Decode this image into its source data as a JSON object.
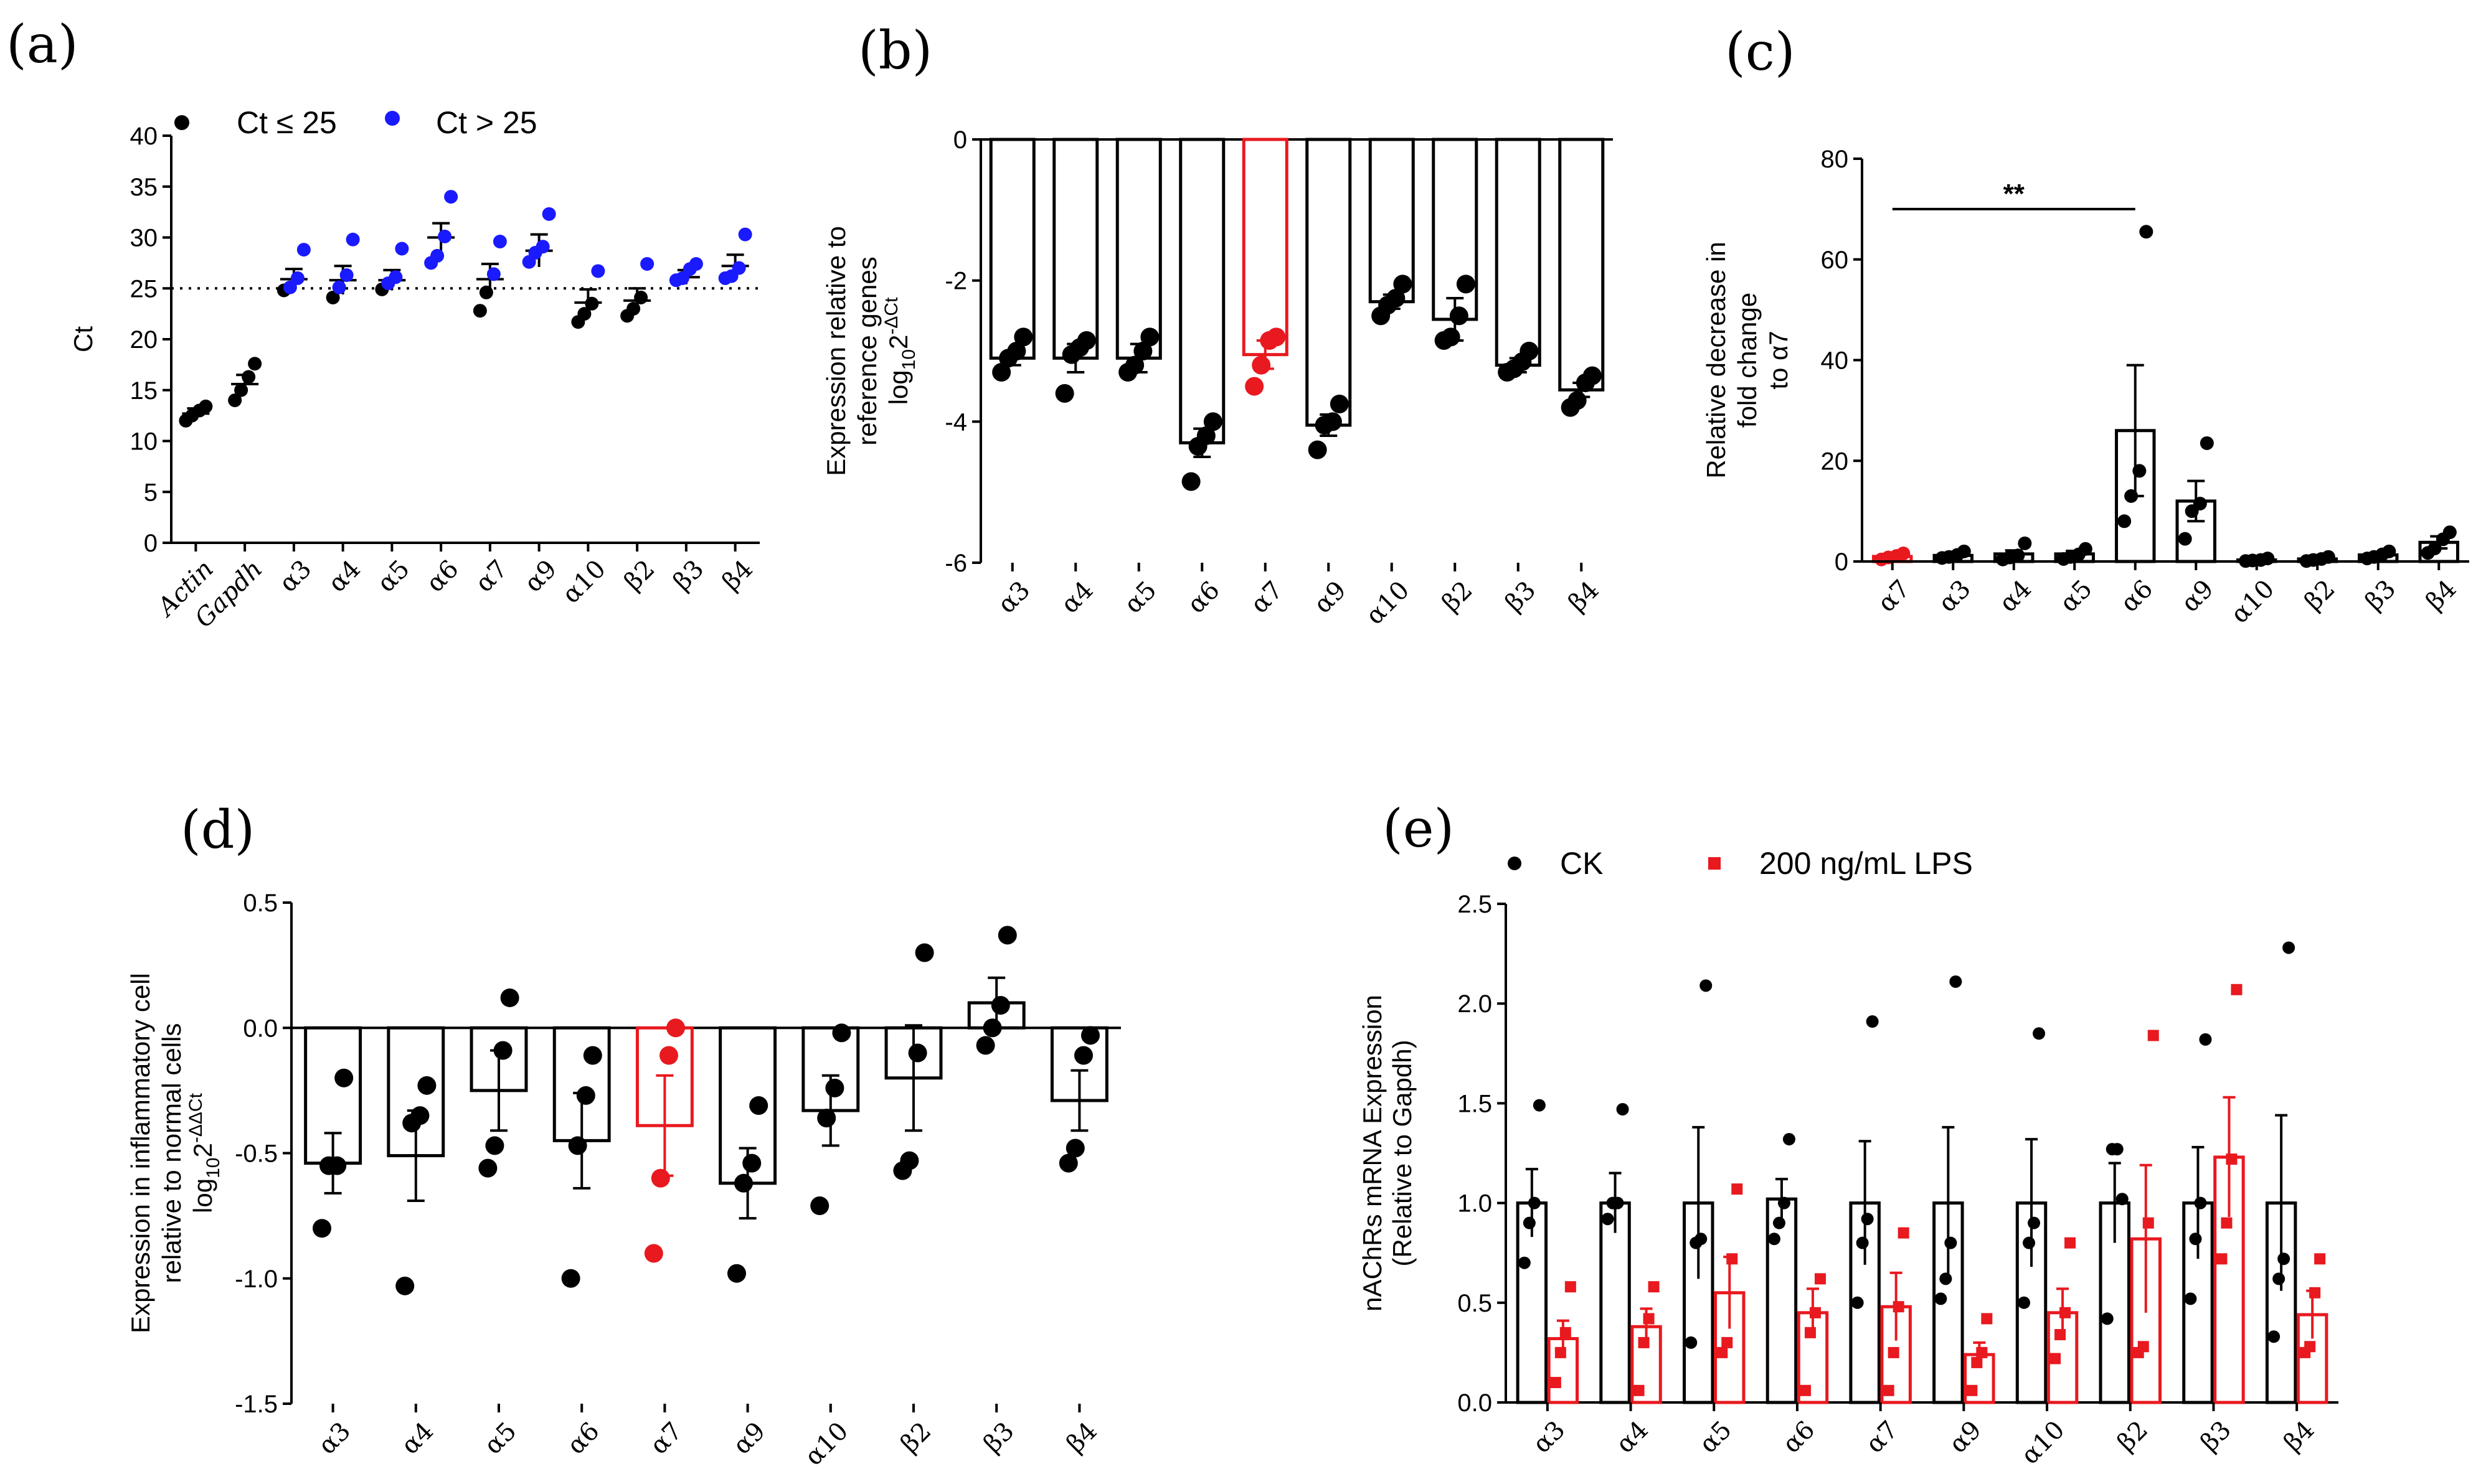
{
  "colors": {
    "black": "#000000",
    "blue": "#1a1aff",
    "red": "#e8191f"
  },
  "panel_labels": {
    "a": "(a)",
    "b": "(b)",
    "c": "(c)",
    "d": "(d)",
    "e": "(e)"
  },
  "chart_data": [
    {
      "id": "a",
      "type": "scatter",
      "title": "",
      "xlabel": "",
      "ylabel": "Ct",
      "ylim": [
        0,
        40
      ],
      "yticks": [
        "0",
        "5",
        "10",
        "15",
        "20",
        "25",
        "30",
        "35",
        "40"
      ],
      "threshold": 25,
      "categories": [
        "Actin",
        "Gapdh",
        "α3",
        "α4",
        "α5",
        "α6",
        "α7",
        "α9",
        "α10",
        "β2",
        "β3",
        "β4"
      ],
      "italic_categories": [
        "Actin",
        "Gapdh"
      ],
      "legend": [
        "Ct ≤ 25",
        "Ct > 25"
      ],
      "means": [
        12.7,
        15.6,
        25.9,
        25.8,
        25.8,
        30.0,
        25.9,
        28.7,
        23.6,
        23.8,
        26.1,
        27.2
      ],
      "sems": [
        0.5,
        0.9,
        1.0,
        1.4,
        1.0,
        1.4,
        1.5,
        1.6,
        1.3,
        1.2,
        0.7,
        1.1
      ],
      "points": [
        [
          12.0,
          12.5,
          13.0,
          13.4
        ],
        [
          14.0,
          15.0,
          16.3,
          17.6
        ],
        [
          24.8,
          25.1,
          26.0,
          28.8
        ],
        [
          24.1,
          25.1,
          26.3,
          29.8
        ],
        [
          24.9,
          25.5,
          26.1,
          28.9
        ],
        [
          27.5,
          28.2,
          30.1,
          34.0
        ],
        [
          22.8,
          24.6,
          26.4,
          29.6
        ],
        [
          27.6,
          28.5,
          29.1,
          32.3
        ],
        [
          21.7,
          22.5,
          23.5,
          26.7
        ],
        [
          22.3,
          23.0,
          24.1,
          27.4
        ],
        [
          25.8,
          26.0,
          26.9,
          27.4
        ],
        [
          26.0,
          26.2,
          27.0,
          30.3
        ]
      ]
    },
    {
      "id": "b",
      "type": "bar",
      "title": "",
      "xlabel": "",
      "ylabel": [
        "Expression relative to",
        "reference genes"
      ],
      "ylabel_formula": {
        "prefix": "log",
        "sub": "10",
        "base": "2",
        "sup": "-ΔCt"
      },
      "ylim": [
        -6,
        0
      ],
      "yticks": [
        "-6",
        "-4",
        "-2",
        "0"
      ],
      "categories": [
        "α3",
        "α4",
        "α5",
        "α6",
        "α7",
        "α9",
        "α10",
        "β2",
        "β3",
        "β4"
      ],
      "highlight": "α7",
      "values": [
        -3.1,
        -3.1,
        -3.1,
        -4.3,
        -3.05,
        -4.05,
        -2.3,
        -2.55,
        -3.2,
        -3.55
      ],
      "sems": [
        0.1,
        0.2,
        0.2,
        0.2,
        0.2,
        0.15,
        0.1,
        0.3,
        0.1,
        0.1
      ],
      "points": [
        [
          -3.3,
          -3.1,
          -3.0,
          -2.8
        ],
        [
          -3.6,
          -3.05,
          -2.95,
          -2.85
        ],
        [
          -3.3,
          -3.2,
          -3.0,
          -2.8
        ],
        [
          -4.85,
          -4.35,
          -4.2,
          -4.0
        ],
        [
          -3.5,
          -3.2,
          -2.85,
          -2.8
        ],
        [
          -4.4,
          -4.05,
          -4.0,
          -3.75
        ],
        [
          -2.5,
          -2.35,
          -2.25,
          -2.05
        ],
        [
          -2.85,
          -2.8,
          -2.5,
          -2.05
        ],
        [
          -3.3,
          -3.25,
          -3.15,
          -3.0
        ],
        [
          -3.8,
          -3.7,
          -3.45,
          -3.35
        ]
      ]
    },
    {
      "id": "c",
      "type": "bar",
      "title": "",
      "xlabel": "",
      "ylabel": [
        "Relative decrease in",
        "fold change",
        "to α7"
      ],
      "ylim": [
        0,
        80
      ],
      "yticks": [
        "0",
        "20",
        "40",
        "60",
        "80"
      ],
      "categories": [
        "α7",
        "α3",
        "α4",
        "α5",
        "α6",
        "α9",
        "α10",
        "β2",
        "β3",
        "β4"
      ],
      "highlight": "α7",
      "significance": {
        "from": "α7",
        "to": "α6",
        "label": "**",
        "y": 70
      },
      "values": [
        1.0,
        1.2,
        1.5,
        1.5,
        26.0,
        12.0,
        0.3,
        0.5,
        1.3,
        3.8
      ],
      "sems": [
        0.3,
        0.3,
        0.7,
        0.6,
        13.0,
        4.0,
        0.1,
        0.2,
        0.4,
        1.2
      ],
      "points": [
        [
          0.4,
          0.8,
          1.1,
          1.6
        ],
        [
          0.7,
          0.9,
          1.3,
          2.0
        ],
        [
          0.4,
          0.8,
          1.2,
          3.6
        ],
        [
          0.5,
          0.9,
          1.4,
          2.5
        ],
        [
          8.0,
          13.0,
          18.0,
          65.5
        ],
        [
          4.5,
          10.0,
          11.5,
          23.5
        ],
        [
          0.1,
          0.2,
          0.3,
          0.6
        ],
        [
          0.1,
          0.3,
          0.5,
          0.9
        ],
        [
          0.6,
          0.9,
          1.4,
          2.0
        ],
        [
          1.7,
          2.6,
          4.4,
          5.8
        ]
      ]
    },
    {
      "id": "d",
      "type": "bar",
      "title": "",
      "xlabel": "",
      "ylabel": [
        "Expression in inflammatory cell",
        "relative to normal cells"
      ],
      "ylabel_formula": {
        "prefix": "log",
        "sub": "10",
        "base": "2",
        "sup": "-ΔΔCt"
      },
      "ylim": [
        -1.5,
        0.5
      ],
      "yticks": [
        "-1.5",
        "-1.0",
        "-0.5",
        "0.0",
        "0.5"
      ],
      "categories": [
        "α3",
        "α4",
        "α5",
        "α6",
        "α7",
        "α9",
        "α10",
        "β2",
        "β3",
        "β4"
      ],
      "highlight": "α7",
      "values": [
        -0.54,
        -0.51,
        -0.25,
        -0.45,
        -0.39,
        -0.62,
        -0.33,
        -0.2,
        0.1,
        -0.29
      ],
      "sems": [
        0.12,
        0.18,
        0.16,
        0.19,
        0.2,
        0.14,
        0.14,
        0.21,
        0.1,
        0.12
      ],
      "points": [
        [
          -0.8,
          -0.55,
          -0.55,
          -0.2
        ],
        [
          -1.03,
          -0.38,
          -0.35,
          -0.23
        ],
        [
          -0.56,
          -0.47,
          -0.09,
          0.12
        ],
        [
          -1.0,
          -0.47,
          -0.27,
          -0.11
        ],
        [
          -0.9,
          -0.6,
          -0.11,
          0.0
        ],
        [
          -0.98,
          -0.62,
          -0.54,
          -0.31
        ],
        [
          -0.71,
          -0.36,
          -0.24,
          -0.02
        ],
        [
          -0.57,
          -0.53,
          -0.1,
          0.3
        ],
        [
          -0.07,
          0.0,
          0.09,
          0.37
        ],
        [
          -0.54,
          -0.48,
          -0.11,
          -0.03
        ]
      ]
    },
    {
      "id": "e",
      "type": "bar",
      "title": "",
      "xlabel": "",
      "ylabel": [
        "nAChRs mRNA Expression",
        "(Relative to Gapdh)"
      ],
      "ylim": [
        0,
        2.5
      ],
      "yticks": [
        "0.0",
        "0.5",
        "1.0",
        "1.5",
        "2.0",
        "2.5"
      ],
      "categories": [
        "α3",
        "α4",
        "α5",
        "α6",
        "α7",
        "α9",
        "α10",
        "β2",
        "β3",
        "β4"
      ],
      "legend": [
        "CK",
        "200 ng/mL LPS"
      ],
      "series": [
        {
          "name": "CK",
          "values": [
            1.0,
            1.0,
            1.0,
            1.02,
            1.0,
            1.0,
            1.0,
            1.0,
            1.0,
            1.0
          ],
          "sems": [
            0.17,
            0.15,
            0.38,
            0.1,
            0.31,
            0.38,
            0.32,
            0.2,
            0.28,
            0.44
          ],
          "points": [
            [
              0.7,
              0.9,
              1.0,
              1.49
            ],
            [
              0.92,
              1.0,
              1.0,
              1.47
            ],
            [
              0.3,
              0.8,
              0.82,
              2.09
            ],
            [
              0.82,
              0.9,
              1.0,
              1.32
            ],
            [
              0.5,
              0.8,
              0.92,
              1.91
            ],
            [
              0.52,
              0.62,
              0.8,
              2.11
            ],
            [
              0.5,
              0.8,
              0.9,
              1.85
            ],
            [
              0.42,
              1.27,
              1.27,
              1.02
            ],
            [
              0.52,
              0.82,
              1.0,
              1.82
            ],
            [
              0.33,
              0.62,
              0.72,
              2.28
            ]
          ]
        },
        {
          "name": "200 ng/mL LPS",
          "values": [
            0.32,
            0.38,
            0.55,
            0.45,
            0.48,
            0.24,
            0.45,
            0.82,
            1.23,
            0.44
          ],
          "sems": [
            0.09,
            0.09,
            0.18,
            0.12,
            0.17,
            0.06,
            0.12,
            0.37,
            0.3,
            0.12
          ],
          "points": [
            [
              0.1,
              0.25,
              0.35,
              0.58
            ],
            [
              0.06,
              0.3,
              0.42,
              0.58
            ],
            [
              0.25,
              0.3,
              0.72,
              1.07
            ],
            [
              0.06,
              0.35,
              0.45,
              0.62
            ],
            [
              0.06,
              0.25,
              0.48,
              0.85
            ],
            [
              0.06,
              0.2,
              0.25,
              0.42
            ],
            [
              0.22,
              0.34,
              0.45,
              0.8
            ],
            [
              0.25,
              0.28,
              0.9,
              1.84
            ],
            [
              0.72,
              0.9,
              1.22,
              2.07
            ],
            [
              0.25,
              0.28,
              0.55,
              0.72
            ]
          ]
        }
      ]
    }
  ]
}
